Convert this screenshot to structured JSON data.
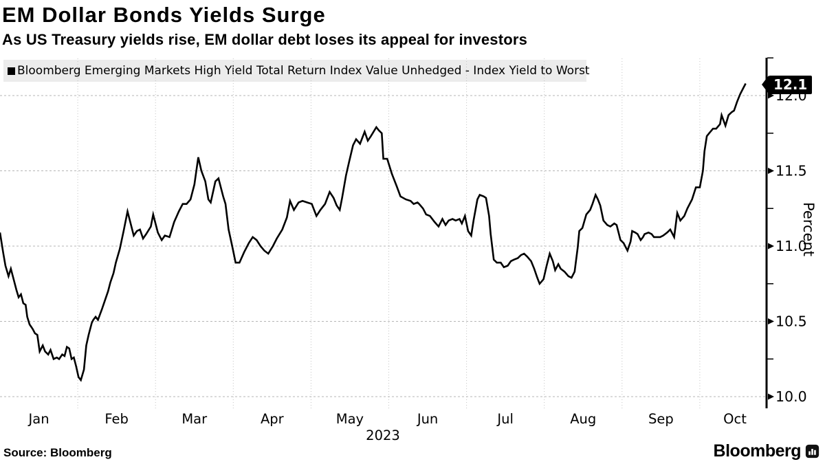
{
  "header": {
    "title": "EM Dollar Bonds Yields Surge",
    "subtitle": "As US Treasury yields rise, EM dollar debt loses its appeal for investors"
  },
  "legend": {
    "swatch_color": "#000000",
    "label": "Bloomberg Emerging Markets High Yield Total Return Index Value Unhedged - Index Yield to Worst"
  },
  "y_axis": {
    "unit_label": "Percent",
    "last_value_label": "12.1"
  },
  "footer": {
    "source_label": "Source: Bloomberg",
    "brand_wordmark": "Bloomberg",
    "brand_icon": "bloomberg-bars-icon"
  },
  "chart_data": {
    "type": "line",
    "title": "EM Dollar Bonds Yields Surge",
    "series_name": "Bloomberg Emerging Markets High Yield Total Return Index Value Unhedged - Index Yield to Worst",
    "line_color": "#000000",
    "grid": true,
    "x_unit": "months since Jan 1, 2023 (fractional)",
    "x_tick_labels": [
      "Jan",
      "Feb",
      "Mar",
      "Apr",
      "May",
      "Jun",
      "Jul",
      "Aug",
      "Sep",
      "Oct"
    ],
    "year_label": "2023",
    "ylabel": "Percent",
    "ylim": [
      10.0,
      12.25
    ],
    "y_major_ticks": [
      10.0,
      10.5,
      11.0,
      11.5,
      12.0
    ],
    "y_minor_ticks": [
      10.25,
      10.75,
      11.25,
      11.75,
      12.25
    ],
    "last_value": 12.1,
    "points": [
      [
        0.0,
        11.09
      ],
      [
        0.04,
        10.96
      ],
      [
        0.07,
        10.87
      ],
      [
        0.11,
        10.8
      ],
      [
        0.14,
        10.85
      ],
      [
        0.18,
        10.77
      ],
      [
        0.21,
        10.71
      ],
      [
        0.24,
        10.66
      ],
      [
        0.27,
        10.68
      ],
      [
        0.3,
        10.62
      ],
      [
        0.33,
        10.61
      ],
      [
        0.35,
        10.53
      ],
      [
        0.38,
        10.48
      ],
      [
        0.42,
        10.45
      ],
      [
        0.45,
        10.42
      ],
      [
        0.48,
        10.41
      ],
      [
        0.51,
        10.3
      ],
      [
        0.55,
        10.34
      ],
      [
        0.58,
        10.3
      ],
      [
        0.62,
        10.28
      ],
      [
        0.65,
        10.31
      ],
      [
        0.69,
        10.25
      ],
      [
        0.73,
        10.26
      ],
      [
        0.76,
        10.25
      ],
      [
        0.8,
        10.28
      ],
      [
        0.83,
        10.27
      ],
      [
        0.86,
        10.33
      ],
      [
        0.89,
        10.32
      ],
      [
        0.92,
        10.25
      ],
      [
        0.95,
        10.26
      ],
      [
        0.98,
        10.2
      ],
      [
        1.01,
        10.13
      ],
      [
        1.04,
        10.11
      ],
      [
        1.08,
        10.18
      ],
      [
        1.11,
        10.34
      ],
      [
        1.14,
        10.41
      ],
      [
        1.18,
        10.49
      ],
      [
        1.2,
        10.51
      ],
      [
        1.23,
        10.53
      ],
      [
        1.26,
        10.51
      ],
      [
        1.31,
        10.58
      ],
      [
        1.35,
        10.64
      ],
      [
        1.39,
        10.7
      ],
      [
        1.42,
        10.76
      ],
      [
        1.46,
        10.82
      ],
      [
        1.49,
        10.89
      ],
      [
        1.54,
        10.98
      ],
      [
        1.59,
        11.1
      ],
      [
        1.64,
        11.23
      ],
      [
        1.68,
        11.15
      ],
      [
        1.72,
        11.07
      ],
      [
        1.76,
        11.1
      ],
      [
        1.8,
        11.11
      ],
      [
        1.84,
        11.05
      ],
      [
        1.88,
        11.08
      ],
      [
        1.94,
        11.13
      ],
      [
        1.97,
        11.21
      ],
      [
        2.03,
        11.09
      ],
      [
        2.08,
        11.04
      ],
      [
        2.12,
        11.07
      ],
      [
        2.18,
        11.06
      ],
      [
        2.24,
        11.16
      ],
      [
        2.3,
        11.23
      ],
      [
        2.35,
        11.28
      ],
      [
        2.4,
        11.28
      ],
      [
        2.45,
        11.31
      ],
      [
        2.5,
        11.41
      ],
      [
        2.55,
        11.59
      ],
      [
        2.59,
        11.5
      ],
      [
        2.64,
        11.43
      ],
      [
        2.68,
        11.31
      ],
      [
        2.71,
        11.29
      ],
      [
        2.77,
        11.43
      ],
      [
        2.81,
        11.45
      ],
      [
        2.87,
        11.33
      ],
      [
        2.9,
        11.28
      ],
      [
        2.94,
        11.11
      ],
      [
        2.99,
        10.99
      ],
      [
        3.03,
        10.89
      ],
      [
        3.08,
        10.89
      ],
      [
        3.14,
        10.96
      ],
      [
        3.2,
        11.02
      ],
      [
        3.25,
        11.06
      ],
      [
        3.3,
        11.04
      ],
      [
        3.35,
        11.0
      ],
      [
        3.4,
        10.97
      ],
      [
        3.45,
        10.95
      ],
      [
        3.51,
        11.0
      ],
      [
        3.56,
        11.05
      ],
      [
        3.63,
        11.11
      ],
      [
        3.69,
        11.19
      ],
      [
        3.73,
        11.3
      ],
      [
        3.78,
        11.24
      ],
      [
        3.84,
        11.29
      ],
      [
        3.89,
        11.3
      ],
      [
        3.95,
        11.29
      ],
      [
        4.01,
        11.28
      ],
      [
        4.07,
        11.2
      ],
      [
        4.12,
        11.24
      ],
      [
        4.18,
        11.28
      ],
      [
        4.24,
        11.36
      ],
      [
        4.29,
        11.32
      ],
      [
        4.33,
        11.27
      ],
      [
        4.37,
        11.24
      ],
      [
        4.4,
        11.32
      ],
      [
        4.45,
        11.47
      ],
      [
        4.49,
        11.56
      ],
      [
        4.54,
        11.67
      ],
      [
        4.58,
        11.71
      ],
      [
        4.63,
        11.68
      ],
      [
        4.69,
        11.76
      ],
      [
        4.73,
        11.7
      ],
      [
        4.77,
        11.73
      ],
      [
        4.84,
        11.79
      ],
      [
        4.87,
        11.77
      ],
      [
        4.91,
        11.75
      ],
      [
        4.93,
        11.58
      ],
      [
        4.98,
        11.58
      ],
      [
        5.04,
        11.48
      ],
      [
        5.1,
        11.4
      ],
      [
        5.15,
        11.33
      ],
      [
        5.22,
        11.31
      ],
      [
        5.28,
        11.3
      ],
      [
        5.32,
        11.28
      ],
      [
        5.37,
        11.29
      ],
      [
        5.39,
        11.28
      ],
      [
        5.44,
        11.25
      ],
      [
        5.48,
        11.21
      ],
      [
        5.53,
        11.2
      ],
      [
        5.59,
        11.16
      ],
      [
        5.64,
        11.13
      ],
      [
        5.69,
        11.18
      ],
      [
        5.73,
        11.14
      ],
      [
        5.77,
        11.17
      ],
      [
        5.82,
        11.18
      ],
      [
        5.86,
        11.17
      ],
      [
        5.91,
        11.18
      ],
      [
        5.94,
        11.15
      ],
      [
        5.98,
        11.2
      ],
      [
        6.02,
        11.1
      ],
      [
        6.06,
        11.07
      ],
      [
        6.09,
        11.17
      ],
      [
        6.14,
        11.31
      ],
      [
        6.17,
        11.34
      ],
      [
        6.22,
        11.33
      ],
      [
        6.25,
        11.32
      ],
      [
        6.29,
        11.2
      ],
      [
        6.31,
        11.08
      ],
      [
        6.35,
        10.91
      ],
      [
        6.39,
        10.89
      ],
      [
        6.44,
        10.89
      ],
      [
        6.48,
        10.86
      ],
      [
        6.53,
        10.87
      ],
      [
        6.57,
        10.9
      ],
      [
        6.61,
        10.91
      ],
      [
        6.66,
        10.92
      ],
      [
        6.7,
        10.94
      ],
      [
        6.74,
        10.95
      ],
      [
        6.78,
        10.93
      ],
      [
        6.83,
        10.9
      ],
      [
        6.87,
        10.85
      ],
      [
        6.91,
        10.79
      ],
      [
        6.94,
        10.75
      ],
      [
        6.99,
        10.78
      ],
      [
        7.03,
        10.87
      ],
      [
        7.07,
        10.95
      ],
      [
        7.11,
        10.9
      ],
      [
        7.14,
        10.84
      ],
      [
        7.18,
        10.88
      ],
      [
        7.21,
        10.85
      ],
      [
        7.26,
        10.83
      ],
      [
        7.31,
        10.8
      ],
      [
        7.35,
        10.79
      ],
      [
        7.39,
        10.83
      ],
      [
        7.43,
        10.99
      ],
      [
        7.45,
        11.1
      ],
      [
        7.49,
        11.12
      ],
      [
        7.54,
        11.21
      ],
      [
        7.59,
        11.24
      ],
      [
        7.62,
        11.28
      ],
      [
        7.66,
        11.34
      ],
      [
        7.69,
        11.31
      ],
      [
        7.72,
        11.27
      ],
      [
        7.76,
        11.17
      ],
      [
        7.81,
        11.14
      ],
      [
        7.85,
        11.13
      ],
      [
        7.9,
        11.15
      ],
      [
        7.93,
        11.14
      ],
      [
        7.98,
        11.04
      ],
      [
        8.02,
        11.02
      ],
      [
        8.07,
        10.97
      ],
      [
        8.11,
        11.03
      ],
      [
        8.13,
        11.1
      ],
      [
        8.17,
        11.09
      ],
      [
        8.2,
        11.08
      ],
      [
        8.24,
        11.04
      ],
      [
        8.27,
        11.06
      ],
      [
        8.29,
        11.08
      ],
      [
        8.34,
        11.09
      ],
      [
        8.38,
        11.08
      ],
      [
        8.41,
        11.06
      ],
      [
        8.44,
        11.06
      ],
      [
        8.49,
        11.06
      ],
      [
        8.53,
        11.07
      ],
      [
        8.58,
        11.09
      ],
      [
        8.62,
        11.11
      ],
      [
        8.67,
        11.06
      ],
      [
        8.71,
        11.22
      ],
      [
        8.75,
        11.17
      ],
      [
        8.8,
        11.2
      ],
      [
        8.84,
        11.25
      ],
      [
        8.9,
        11.31
      ],
      [
        8.95,
        11.39
      ],
      [
        9.0,
        11.39
      ],
      [
        9.04,
        11.5
      ],
      [
        9.06,
        11.63
      ],
      [
        9.09,
        11.73
      ],
      [
        9.12,
        11.75
      ],
      [
        9.17,
        11.78
      ],
      [
        9.21,
        11.78
      ],
      [
        9.26,
        11.81
      ],
      [
        9.28,
        11.87
      ],
      [
        9.33,
        11.8
      ],
      [
        9.37,
        11.87
      ],
      [
        9.41,
        11.89
      ],
      [
        9.44,
        11.9
      ],
      [
        9.48,
        11.96
      ],
      [
        9.52,
        12.01
      ],
      [
        9.56,
        12.05
      ],
      [
        9.59,
        12.08
      ]
    ]
  }
}
